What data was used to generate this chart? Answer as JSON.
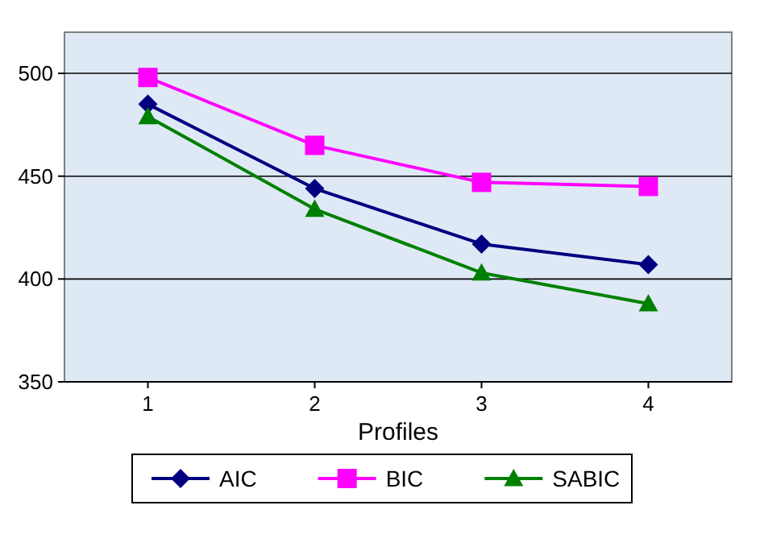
{
  "chart_data": {
    "type": "line",
    "xlabel": "Profiles",
    "categories": [
      "1",
      "2",
      "3",
      "4"
    ],
    "ylim": [
      350,
      520
    ],
    "yticks": [
      350,
      400,
      450,
      500
    ],
    "grid": "y",
    "legend": "bottom",
    "series": [
      {
        "name": "AIC",
        "color": "#000080",
        "values": [
          485,
          444,
          417,
          407
        ],
        "marker": "diamond"
      },
      {
        "name": "BIC",
        "color": "#ff00ff",
        "values": [
          498,
          465,
          447,
          445
        ],
        "marker": "square"
      },
      {
        "name": "SABIC",
        "color": "#008000",
        "values": [
          479,
          434,
          403,
          388
        ],
        "marker": "triangle"
      }
    ]
  }
}
